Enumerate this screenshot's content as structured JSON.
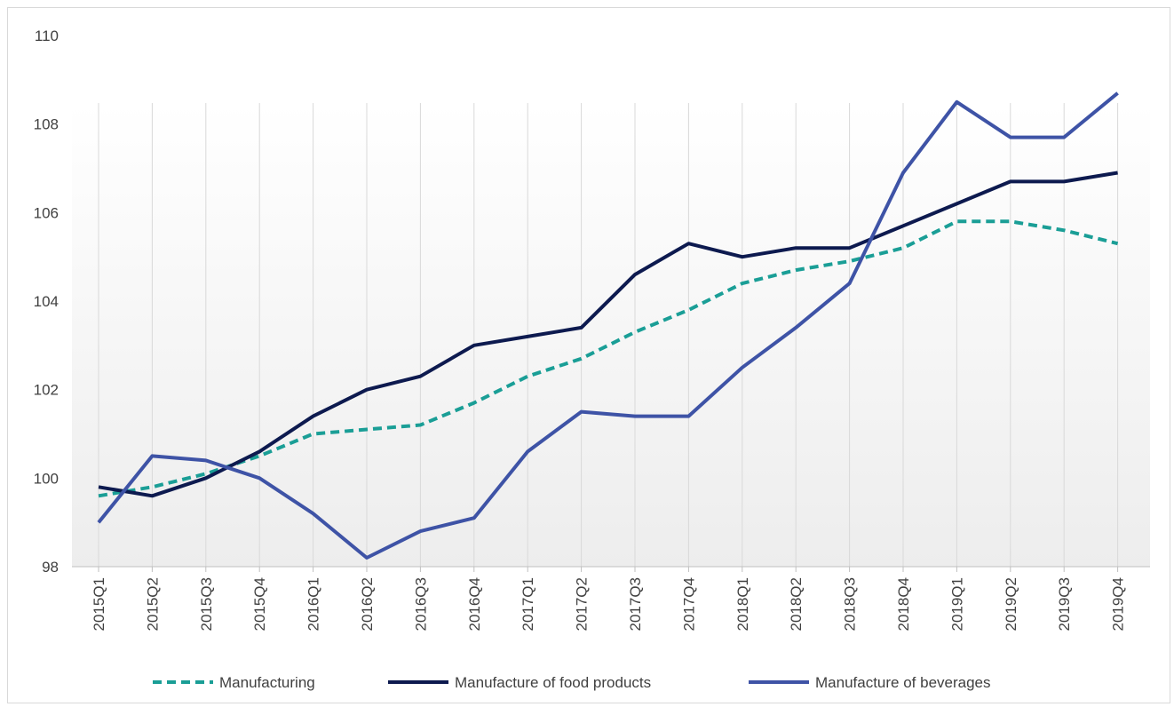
{
  "chart_data": {
    "type": "line",
    "title": "",
    "xlabel": "",
    "ylabel": "",
    "ylim": [
      98,
      110
    ],
    "yticks": [
      98,
      100,
      102,
      104,
      106,
      108,
      110
    ],
    "grid": "vertical",
    "legend_position": "bottom",
    "categories": [
      "2015Q1",
      "2015Q2",
      "2015Q3",
      "2015Q4",
      "2016Q1",
      "2016Q2",
      "2016Q3",
      "2016Q4",
      "2017Q1",
      "2017Q2",
      "2017Q3",
      "2017Q4",
      "2018Q1",
      "2018Q2",
      "2018Q3",
      "2018Q4",
      "2019Q1",
      "2019Q2",
      "2019Q3",
      "2019Q4"
    ],
    "series": [
      {
        "name": "Manufacturing",
        "color": "#1a9e96",
        "style": "dashed",
        "values": [
          99.6,
          99.8,
          100.1,
          100.5,
          101.0,
          101.1,
          101.2,
          101.7,
          102.3,
          102.7,
          103.3,
          103.8,
          104.4,
          104.7,
          104.9,
          105.2,
          105.8,
          105.8,
          105.6,
          105.3
        ]
      },
      {
        "name": "Manufacture of food products",
        "color": "#0d1a4f",
        "style": "solid",
        "values": [
          99.8,
          99.6,
          100.0,
          100.6,
          101.4,
          102.0,
          102.3,
          103.0,
          103.2,
          103.4,
          104.6,
          105.3,
          105.0,
          105.2,
          105.2,
          105.7,
          106.2,
          106.7,
          106.7,
          106.9
        ]
      },
      {
        "name": "Manufacture of beverages",
        "color": "#3e53a6",
        "style": "solid",
        "values": [
          99.0,
          100.5,
          100.4,
          100.0,
          99.2,
          98.2,
          98.8,
          99.1,
          100.6,
          101.5,
          101.4,
          101.4,
          102.5,
          103.4,
          104.4,
          106.9,
          108.5,
          107.7,
          107.7,
          108.7
        ]
      }
    ]
  }
}
